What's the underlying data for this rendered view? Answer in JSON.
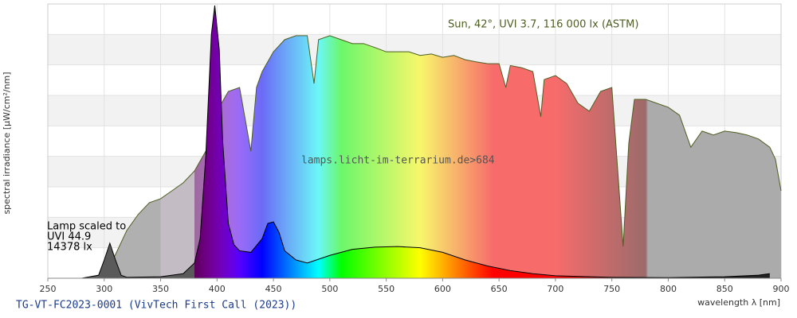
{
  "chart_data": {
    "type": "area",
    "title": "Sun, 42°, UVI 3.7, 116 000 lx (ASTM)",
    "annotations": [
      "Lamp scaled to",
      "UVI 44.9",
      "14378 lx"
    ],
    "watermark": "lamps.licht-im-terrarium.de>684",
    "footer": "TG-VT-FC2023-0001 (VivTech First Call (2023))",
    "xlabel": "wavelength λ [nm]",
    "ylabel": "spectral irradiance [µW/cm²/nm]",
    "xlim": [
      250,
      900
    ],
    "xticks": [
      250,
      300,
      350,
      400,
      450,
      500,
      550,
      600,
      650,
      700,
      750,
      800,
      850,
      900
    ],
    "ylim": [
      0,
      9
    ],
    "yticks": [
      0,
      1,
      2,
      3,
      4,
      5,
      6,
      7,
      8,
      9
    ],
    "ytick_labels": false,
    "grid": true,
    "series": [
      {
        "name": "Sun",
        "color": "#4e5f22",
        "x": [
          295,
          300,
          310,
          320,
          330,
          340,
          350,
          360,
          370,
          380,
          390,
          393,
          400,
          410,
          420,
          430,
          435,
          440,
          450,
          460,
          470,
          480,
          486,
          490,
          500,
          510,
          520,
          530,
          540,
          550,
          560,
          570,
          580,
          590,
          600,
          610,
          620,
          630,
          640,
          650,
          656,
          660,
          670,
          680,
          687,
          690,
          700,
          710,
          720,
          730,
          740,
          750,
          760,
          765,
          770,
          780,
          790,
          800,
          810,
          820,
          830,
          840,
          850,
          860,
          870,
          880,
          890,
          895,
          900
        ],
        "values": [
          0,
          0.13,
          0.78,
          1.57,
          2.09,
          2.48,
          2.61,
          2.87,
          3.13,
          3.52,
          4.17,
          3.13,
          5.48,
          6.13,
          6.26,
          4.17,
          6.26,
          6.78,
          7.43,
          7.83,
          7.96,
          7.96,
          6.39,
          7.83,
          7.96,
          7.83,
          7.7,
          7.7,
          7.57,
          7.43,
          7.43,
          7.43,
          7.31,
          7.36,
          7.25,
          7.31,
          7.17,
          7.1,
          7.04,
          7.04,
          6.26,
          6.98,
          6.91,
          6.78,
          5.3,
          6.52,
          6.65,
          6.39,
          5.74,
          5.48,
          6.13,
          6.26,
          1.04,
          4.43,
          5.87,
          5.87,
          5.74,
          5.61,
          5.35,
          4.3,
          4.83,
          4.7,
          4.83,
          4.78,
          4.7,
          4.57,
          4.3,
          3.91,
          2.87
        ]
      },
      {
        "name": "Lamp",
        "color": "#000000",
        "x": [
          280,
          295,
          300,
          305,
          310,
          315,
          320,
          350,
          370,
          380,
          385,
          390,
          395,
          398,
          402,
          405,
          410,
          415,
          420,
          430,
          440,
          445,
          450,
          455,
          460,
          470,
          480,
          500,
          520,
          540,
          560,
          580,
          600,
          620,
          640,
          660,
          680,
          700,
          750,
          800,
          850,
          880,
          890
        ],
        "values": [
          0,
          0.1,
          0.6,
          1.15,
          0.6,
          0.1,
          0.03,
          0.05,
          0.15,
          0.5,
          1.3,
          4.0,
          8.0,
          8.95,
          7.5,
          4.5,
          1.8,
          1.1,
          0.9,
          0.85,
          1.3,
          1.8,
          1.85,
          1.5,
          0.9,
          0.6,
          0.5,
          0.75,
          0.95,
          1.02,
          1.04,
          1.0,
          0.85,
          0.6,
          0.4,
          0.25,
          0.15,
          0.08,
          0.03,
          0.02,
          0.05,
          0.1,
          0.15
        ]
      }
    ]
  }
}
